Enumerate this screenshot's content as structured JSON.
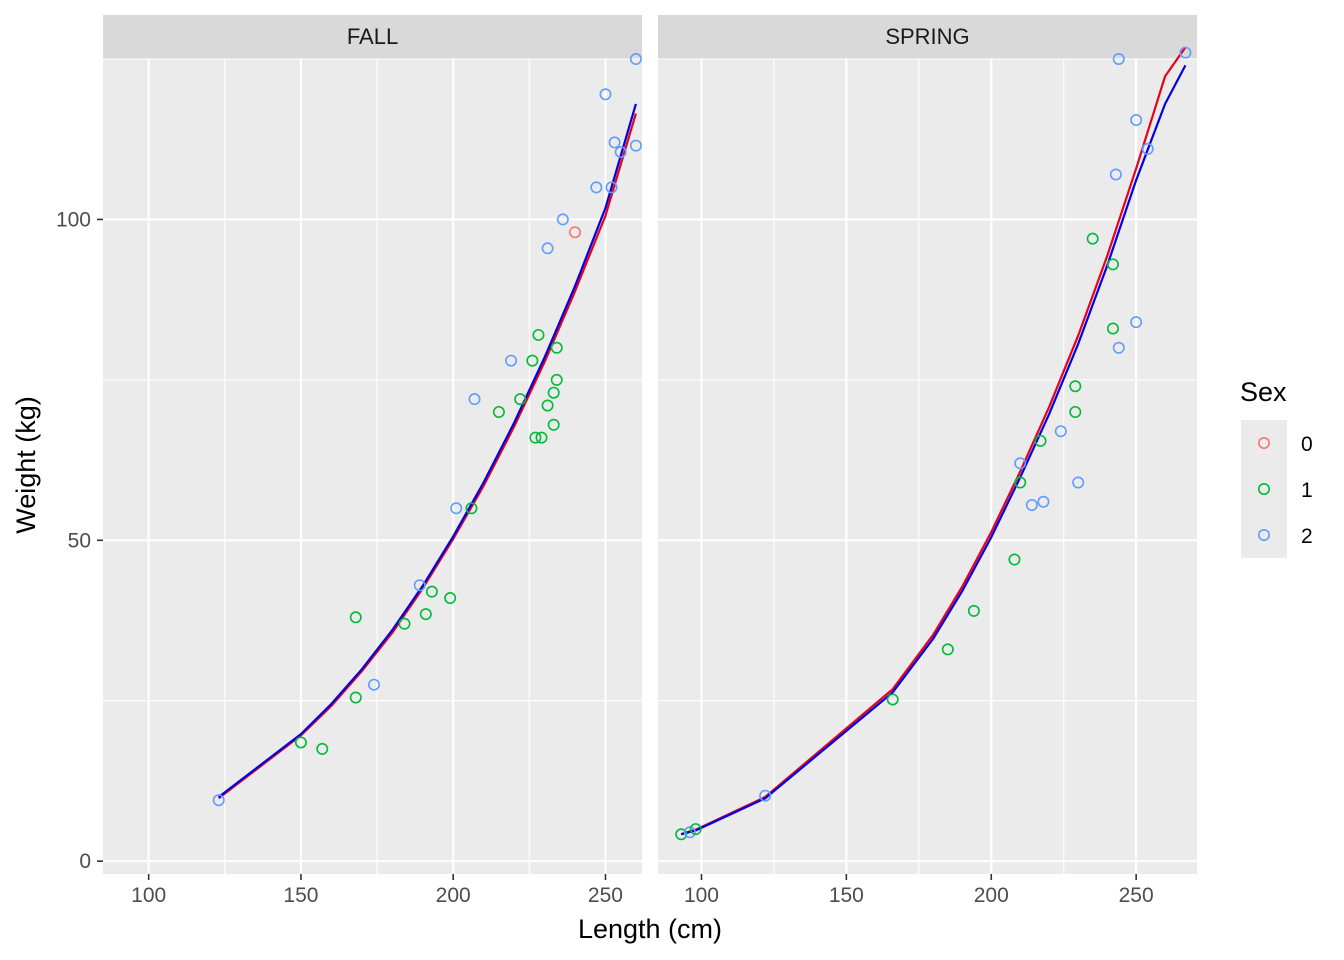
{
  "chart_data": {
    "type": "scatter",
    "xlabel": "Length (cm)",
    "ylabel": "Weight (kg)",
    "xlim": [
      85,
      262
    ],
    "ylim": [
      -2,
      125
    ],
    "x_ticks": [
      100,
      150,
      200,
      250
    ],
    "y_ticks": [
      0,
      50,
      100
    ],
    "grid": true,
    "legend_position": "right",
    "legend": {
      "title": "Sex",
      "entries": [
        {
          "label": "0",
          "color": "#F8766D"
        },
        {
          "label": "1",
          "color": "#00BA38"
        },
        {
          "label": "2",
          "color": "#619CFF"
        }
      ]
    },
    "fit_colors": {
      "red": "#E8001C",
      "blue": "#0000E0"
    },
    "panels": [
      {
        "label": "FALL",
        "xlim": [
          85,
          262
        ],
        "points": [
          {
            "x": 123,
            "y": 9.5,
            "sex": "2"
          },
          {
            "x": 150,
            "y": 18.5,
            "sex": "1"
          },
          {
            "x": 157,
            "y": 17.5,
            "sex": "1"
          },
          {
            "x": 168,
            "y": 38,
            "sex": "1"
          },
          {
            "x": 168,
            "y": 25.5,
            "sex": "1"
          },
          {
            "x": 174,
            "y": 27.5,
            "sex": "2"
          },
          {
            "x": 184,
            "y": 37,
            "sex": "1"
          },
          {
            "x": 189,
            "y": 43,
            "sex": "2"
          },
          {
            "x": 191,
            "y": 38.5,
            "sex": "1"
          },
          {
            "x": 193,
            "y": 42,
            "sex": "1"
          },
          {
            "x": 199,
            "y": 41,
            "sex": "1"
          },
          {
            "x": 201,
            "y": 55,
            "sex": "2"
          },
          {
            "x": 206,
            "y": 55,
            "sex": "1"
          },
          {
            "x": 207,
            "y": 72,
            "sex": "2"
          },
          {
            "x": 215,
            "y": 70,
            "sex": "1"
          },
          {
            "x": 219,
            "y": 78,
            "sex": "2"
          },
          {
            "x": 222,
            "y": 72,
            "sex": "1"
          },
          {
            "x": 226,
            "y": 78,
            "sex": "1"
          },
          {
            "x": 227,
            "y": 66,
            "sex": "1"
          },
          {
            "x": 228,
            "y": 82,
            "sex": "1"
          },
          {
            "x": 229,
            "y": 66,
            "sex": "1"
          },
          {
            "x": 231,
            "y": 71,
            "sex": "1"
          },
          {
            "x": 231,
            "y": 95.5,
            "sex": "2"
          },
          {
            "x": 233,
            "y": 73,
            "sex": "1"
          },
          {
            "x": 233,
            "y": 68,
            "sex": "1"
          },
          {
            "x": 234,
            "y": 80,
            "sex": "1"
          },
          {
            "x": 234,
            "y": 75,
            "sex": "1"
          },
          {
            "x": 236,
            "y": 100,
            "sex": "2"
          },
          {
            "x": 240,
            "y": 98,
            "sex": "0"
          },
          {
            "x": 247,
            "y": 105,
            "sex": "2"
          },
          {
            "x": 250,
            "y": 119.5,
            "sex": "2"
          },
          {
            "x": 252,
            "y": 105,
            "sex": "2"
          },
          {
            "x": 253,
            "y": 112,
            "sex": "2"
          },
          {
            "x": 255,
            "y": 110.5,
            "sex": "2"
          },
          {
            "x": 260,
            "y": 125,
            "sex": "2"
          },
          {
            "x": 260,
            "y": 111.5,
            "sex": "2"
          }
        ],
        "fits": [
          {
            "color": "red",
            "x": [
              123,
              150,
              160,
              170,
              180,
              190,
              200,
              210,
              220,
              230,
              240,
              250,
              260
            ],
            "y": [
              9.8,
              19.6,
              24.2,
              29.6,
              35.6,
              42.5,
              50.2,
              58.5,
              67.7,
              77.8,
              88.8,
              100.6,
              116.5
            ]
          },
          {
            "color": "blue",
            "x": [
              123,
              150,
              160,
              170,
              180,
              190,
              200,
              210,
              220,
              230,
              240,
              250,
              260
            ],
            "y": [
              10.0,
              19.8,
              24.5,
              29.9,
              36.0,
              42.9,
              50.6,
              59.0,
              68.3,
              78.5,
              89.6,
              101.8,
              118.0
            ]
          }
        ]
      },
      {
        "label": "SPRING",
        "xlim": [
          85,
          271
        ],
        "points": [
          {
            "x": 93,
            "y": 4.2,
            "sex": "1"
          },
          {
            "x": 96,
            "y": 4.5,
            "sex": "2"
          },
          {
            "x": 98,
            "y": 5.0,
            "sex": "1"
          },
          {
            "x": 122,
            "y": 10.2,
            "sex": "2"
          },
          {
            "x": 166,
            "y": 25.2,
            "sex": "1"
          },
          {
            "x": 185,
            "y": 33,
            "sex": "1"
          },
          {
            "x": 194,
            "y": 39,
            "sex": "1"
          },
          {
            "x": 208,
            "y": 47,
            "sex": "1"
          },
          {
            "x": 210,
            "y": 59,
            "sex": "1"
          },
          {
            "x": 210,
            "y": 62,
            "sex": "2"
          },
          {
            "x": 214,
            "y": 55.5,
            "sex": "2"
          },
          {
            "x": 217,
            "y": 65.5,
            "sex": "1"
          },
          {
            "x": 218,
            "y": 56,
            "sex": "2"
          },
          {
            "x": 224,
            "y": 67,
            "sex": "2"
          },
          {
            "x": 229,
            "y": 70,
            "sex": "1"
          },
          {
            "x": 229,
            "y": 74,
            "sex": "1"
          },
          {
            "x": 230,
            "y": 59,
            "sex": "2"
          },
          {
            "x": 235,
            "y": 97,
            "sex": "1"
          },
          {
            "x": 242,
            "y": 83,
            "sex": "1"
          },
          {
            "x": 242,
            "y": 93,
            "sex": "1"
          },
          {
            "x": 243,
            "y": 107,
            "sex": "2"
          },
          {
            "x": 244,
            "y": 125,
            "sex": "2"
          },
          {
            "x": 244,
            "y": 80,
            "sex": "2"
          },
          {
            "x": 250,
            "y": 115.5,
            "sex": "2"
          },
          {
            "x": 250,
            "y": 84,
            "sex": "2"
          },
          {
            "x": 254,
            "y": 111,
            "sex": "2"
          },
          {
            "x": 267,
            "y": 126,
            "sex": "2"
          }
        ],
        "fits": [
          {
            "color": "red",
            "x": [
              93,
              98,
              122,
              166,
              180,
              190,
              200,
              210,
              220,
              230,
              240,
              250,
              260,
              267
            ],
            "y": [
              4.2,
              4.9,
              10.0,
              26.8,
              35.3,
              42.8,
              51.3,
              60.7,
              70.8,
              81.9,
              94.3,
              107.9,
              122.3,
              126.8
            ]
          },
          {
            "color": "blue",
            "x": [
              93,
              98,
              122,
              166,
              180,
              190,
              200,
              210,
              220,
              230,
              240,
              250,
              260,
              267
            ],
            "y": [
              4.2,
              4.8,
              9.8,
              26.3,
              34.7,
              42.1,
              50.5,
              59.8,
              69.7,
              80.6,
              92.8,
              106.1,
              118.0,
              124.0
            ]
          }
        ]
      }
    ]
  }
}
